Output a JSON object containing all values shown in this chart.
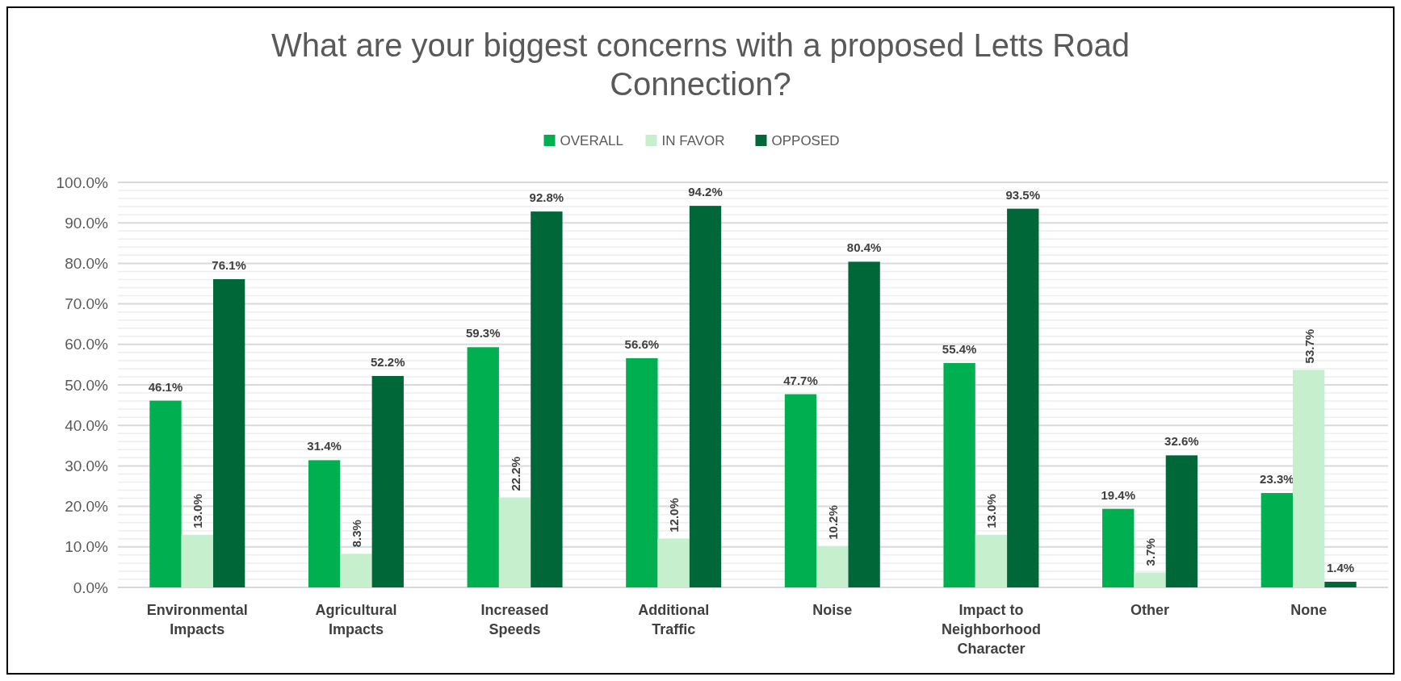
{
  "chart_data": {
    "type": "bar",
    "title": "What are your biggest concerns with a proposed Letts Road Connection?",
    "categories": [
      "Environmental Impacts",
      "Agricultural Impacts",
      "Increased Speeds",
      "Additional Traffic",
      "Noise",
      "Impact to Neighborhood Character",
      "Other",
      "None"
    ],
    "series": [
      {
        "name": "OVERALL",
        "color": "#00b050",
        "values": [
          46.1,
          31.4,
          59.3,
          56.6,
          47.7,
          55.4,
          19.4,
          23.3
        ],
        "value_labels": [
          "46.1%",
          "31.4%",
          "59.3%",
          "56.6%",
          "47.7%",
          "55.4%",
          "19.4%",
          "23.3%"
        ]
      },
      {
        "name": "IN FAVOR",
        "color": "#c6efce",
        "values": [
          13.0,
          8.3,
          22.2,
          12.0,
          10.2,
          13.0,
          3.7,
          53.7
        ],
        "value_labels": [
          "13.0%",
          "8.3%",
          "22.2%",
          "12.0%",
          "10.2%",
          "13.0%",
          "3.7%",
          "53.7%"
        ]
      },
      {
        "name": "OPPOSED",
        "color": "#006838",
        "values": [
          76.1,
          52.2,
          92.8,
          94.2,
          80.4,
          93.5,
          32.6,
          1.4
        ],
        "value_labels": [
          "76.1%",
          "52.2%",
          "92.8%",
          "94.2%",
          "80.4%",
          "93.5%",
          "32.6%",
          "1.4%"
        ]
      }
    ],
    "ylim": [
      0,
      100
    ],
    "yticks": [
      {
        "value": 0,
        "label": "0.0%"
      },
      {
        "value": 2,
        "label": null
      },
      {
        "value": 4,
        "label": null
      },
      {
        "value": 6,
        "label": null
      },
      {
        "value": 8,
        "label": null
      },
      {
        "value": 10,
        "label": "10.0%"
      },
      {
        "value": 12,
        "label": null
      },
      {
        "value": 14,
        "label": null
      },
      {
        "value": 16,
        "label": null
      },
      {
        "value": 18,
        "label": null
      },
      {
        "value": 20,
        "label": "20.0%"
      },
      {
        "value": 22,
        "label": null
      },
      {
        "value": 24,
        "label": null
      },
      {
        "value": 26,
        "label": null
      },
      {
        "value": 28,
        "label": null
      },
      {
        "value": 30,
        "label": "30.0%"
      },
      {
        "value": 32,
        "label": null
      },
      {
        "value": 34,
        "label": null
      },
      {
        "value": 36,
        "label": null
      },
      {
        "value": 38,
        "label": null
      },
      {
        "value": 40,
        "label": "40.0%"
      },
      {
        "value": 42,
        "label": null
      },
      {
        "value": 44,
        "label": null
      },
      {
        "value": 46,
        "label": null
      },
      {
        "value": 48,
        "label": null
      },
      {
        "value": 50,
        "label": "50.0%"
      },
      {
        "value": 52,
        "label": null
      },
      {
        "value": 54,
        "label": null
      },
      {
        "value": 56,
        "label": null
      },
      {
        "value": 58,
        "label": null
      },
      {
        "value": 60,
        "label": "60.0%"
      },
      {
        "value": 62,
        "label": null
      },
      {
        "value": 64,
        "label": null
      },
      {
        "value": 66,
        "label": null
      },
      {
        "value": 68,
        "label": null
      },
      {
        "value": 70,
        "label": "70.0%"
      },
      {
        "value": 72,
        "label": null
      },
      {
        "value": 74,
        "label": null
      },
      {
        "value": 76,
        "label": null
      },
      {
        "value": 78,
        "label": null
      },
      {
        "value": 80,
        "label": "80.0%"
      },
      {
        "value": 82,
        "label": null
      },
      {
        "value": 84,
        "label": null
      },
      {
        "value": 86,
        "label": null
      },
      {
        "value": 88,
        "label": null
      },
      {
        "value": 90,
        "label": "90.0%"
      },
      {
        "value": 92,
        "label": null
      },
      {
        "value": 94,
        "label": null
      },
      {
        "value": 96,
        "label": null
      },
      {
        "value": 98,
        "label": null
      },
      {
        "value": 100,
        "label": "100.0%"
      }
    ],
    "grid": "y",
    "legend": "top"
  }
}
